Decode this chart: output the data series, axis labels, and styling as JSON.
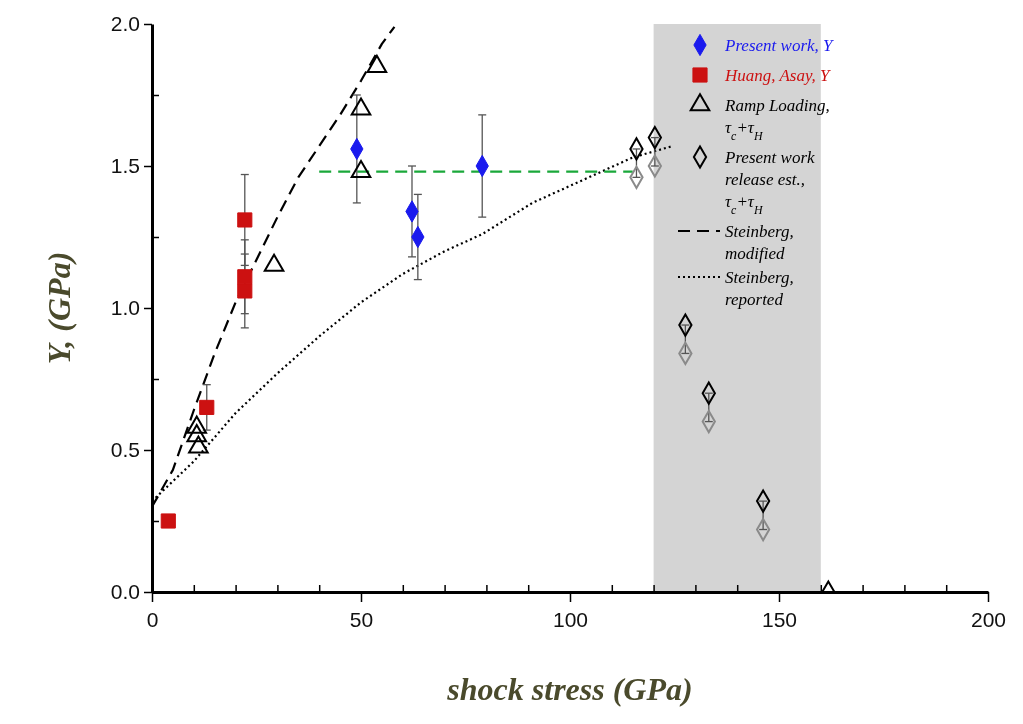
{
  "chart_data": {
    "type": "scatter",
    "xlabel": "shock stress (GPa)",
    "ylabel": "Y, (GPa)",
    "xlim": [
      0,
      200
    ],
    "ylim": [
      0,
      2.0
    ],
    "xticks": [
      0,
      {
        "value": 10,
        "label": null
      },
      {
        "value": 20,
        "label": null
      },
      {
        "value": 30,
        "label": null
      },
      {
        "value": 40,
        "label": null
      },
      50,
      {
        "value": 60,
        "label": null
      },
      {
        "value": 70,
        "label": null
      },
      {
        "value": 80,
        "label": null
      },
      {
        "value": 90,
        "label": null
      },
      100,
      {
        "value": 110,
        "label": null
      },
      {
        "value": 120,
        "label": null
      },
      {
        "value": 130,
        "label": null
      },
      {
        "value": 140,
        "label": null
      },
      150,
      {
        "value": 160,
        "label": null
      },
      {
        "value": 170,
        "label": null
      },
      {
        "value": 180,
        "label": null
      },
      {
        "value": 190,
        "label": null
      },
      200
    ],
    "yticks": [
      {
        "value": 0,
        "label": "0.0"
      },
      {
        "value": 0.25,
        "label": null
      },
      {
        "value": 0.5,
        "label": "0.5"
      },
      {
        "value": 0.75,
        "label": null
      },
      {
        "value": 1.0,
        "label": "1.0"
      },
      {
        "value": 1.25,
        "label": null
      },
      {
        "value": 1.5,
        "label": "1.5"
      },
      {
        "value": 1.75,
        "label": null
      },
      {
        "value": 2.0,
        "label": "2.0"
      }
    ],
    "legend": "top right",
    "bands": [
      {
        "axis": "x",
        "from": 120,
        "to": 160,
        "color": "#d4d4d4"
      }
    ],
    "series": [
      {
        "name": "Present work, Y",
        "marker": "diamond",
        "color": "#1a1aee",
        "x": [
          49,
          62.2,
          63.6,
          79
        ],
        "values": [
          1.56,
          1.34,
          1.25,
          1.5
        ],
        "errors": [
          [
            1.37,
            1.75
          ],
          [
            1.18,
            1.5
          ],
          [
            1.1,
            1.4
          ],
          [
            1.32,
            1.68
          ]
        ]
      },
      {
        "name": "Huang, Asay, Y",
        "marker": "square",
        "color": "#cc1111",
        "x": [
          3.9,
          13.1,
          22.2,
          22.2,
          22.2
        ],
        "values": [
          0.25,
          0.65,
          1.31,
          1.11,
          1.06
        ],
        "errors": [
          null,
          [
            0.57,
            0.73
          ],
          [
            1.15,
            1.47
          ],
          [
            0.98,
            1.24
          ],
          [
            0.93,
            1.19
          ]
        ]
      },
      {
        "name": "Ramp Loading, τ$_{c}$+τ$_{H}$",
        "marker": "triangle",
        "color": "#000000",
        "x": [
          10.7,
          10.7,
          11.1,
          29.2,
          50,
          50,
          53.8
        ],
        "values": [
          0.58,
          0.55,
          0.51,
          1.15,
          1.7,
          1.48,
          1.85
        ]
      },
      {
        "name": "Present work release est., τ$_{c}$+τ$_{H}$",
        "marker": "diamond",
        "color": "#000000",
        "x": [
          115.9,
          120.3,
          127.6,
          133.2,
          146.2,
          161.8
        ],
        "values": [
          1.56,
          1.6,
          0.94,
          0.7,
          0.32,
          0.0
        ],
        "errors": [
          [
            1.46,
            1.56
          ],
          [
            1.5,
            1.6
          ],
          [
            0.84,
            0.94
          ],
          [
            0.6,
            0.7
          ],
          [
            0.22,
            0.32
          ],
          null
        ]
      },
      {
        "name": "Steinberg, modified",
        "type": "line",
        "marker": "none",
        "line_style": "dashed",
        "color": "#000000",
        "x": [
          0,
          5,
          10,
          15,
          20,
          25,
          30,
          35,
          40,
          45,
          50,
          55,
          58
        ],
        "values": [
          0.3,
          0.43,
          0.64,
          0.84,
          1.02,
          1.17,
          1.32,
          1.46,
          1.57,
          1.68,
          1.8,
          1.93,
          1.99
        ]
      },
      {
        "name": "Steinberg, reported",
        "type": "line",
        "marker": "none",
        "line_style": "dotted",
        "color": "#000000",
        "x": [
          0,
          10,
          20,
          30,
          40,
          50,
          60,
          70,
          79,
          91,
          103,
          115,
          124.5
        ],
        "values": [
          0.32,
          0.46,
          0.63,
          0.77,
          0.9,
          1.02,
          1.12,
          1.2,
          1.26,
          1.37,
          1.45,
          1.53,
          1.57
        ]
      },
      {
        "marker": "diamond",
        "color": "#8a8a8a",
        "x": [
          115.9,
          120.3,
          127.6,
          133.2,
          146.2
        ],
        "values": [
          1.46,
          1.5,
          0.84,
          0.6,
          0.22
        ]
      },
      {
        "type": "line",
        "marker": "none",
        "line_style": "dashed",
        "color": "#1aa83a",
        "x": [
          40,
          115
        ],
        "values": [
          1.48,
          1.48
        ]
      }
    ]
  }
}
